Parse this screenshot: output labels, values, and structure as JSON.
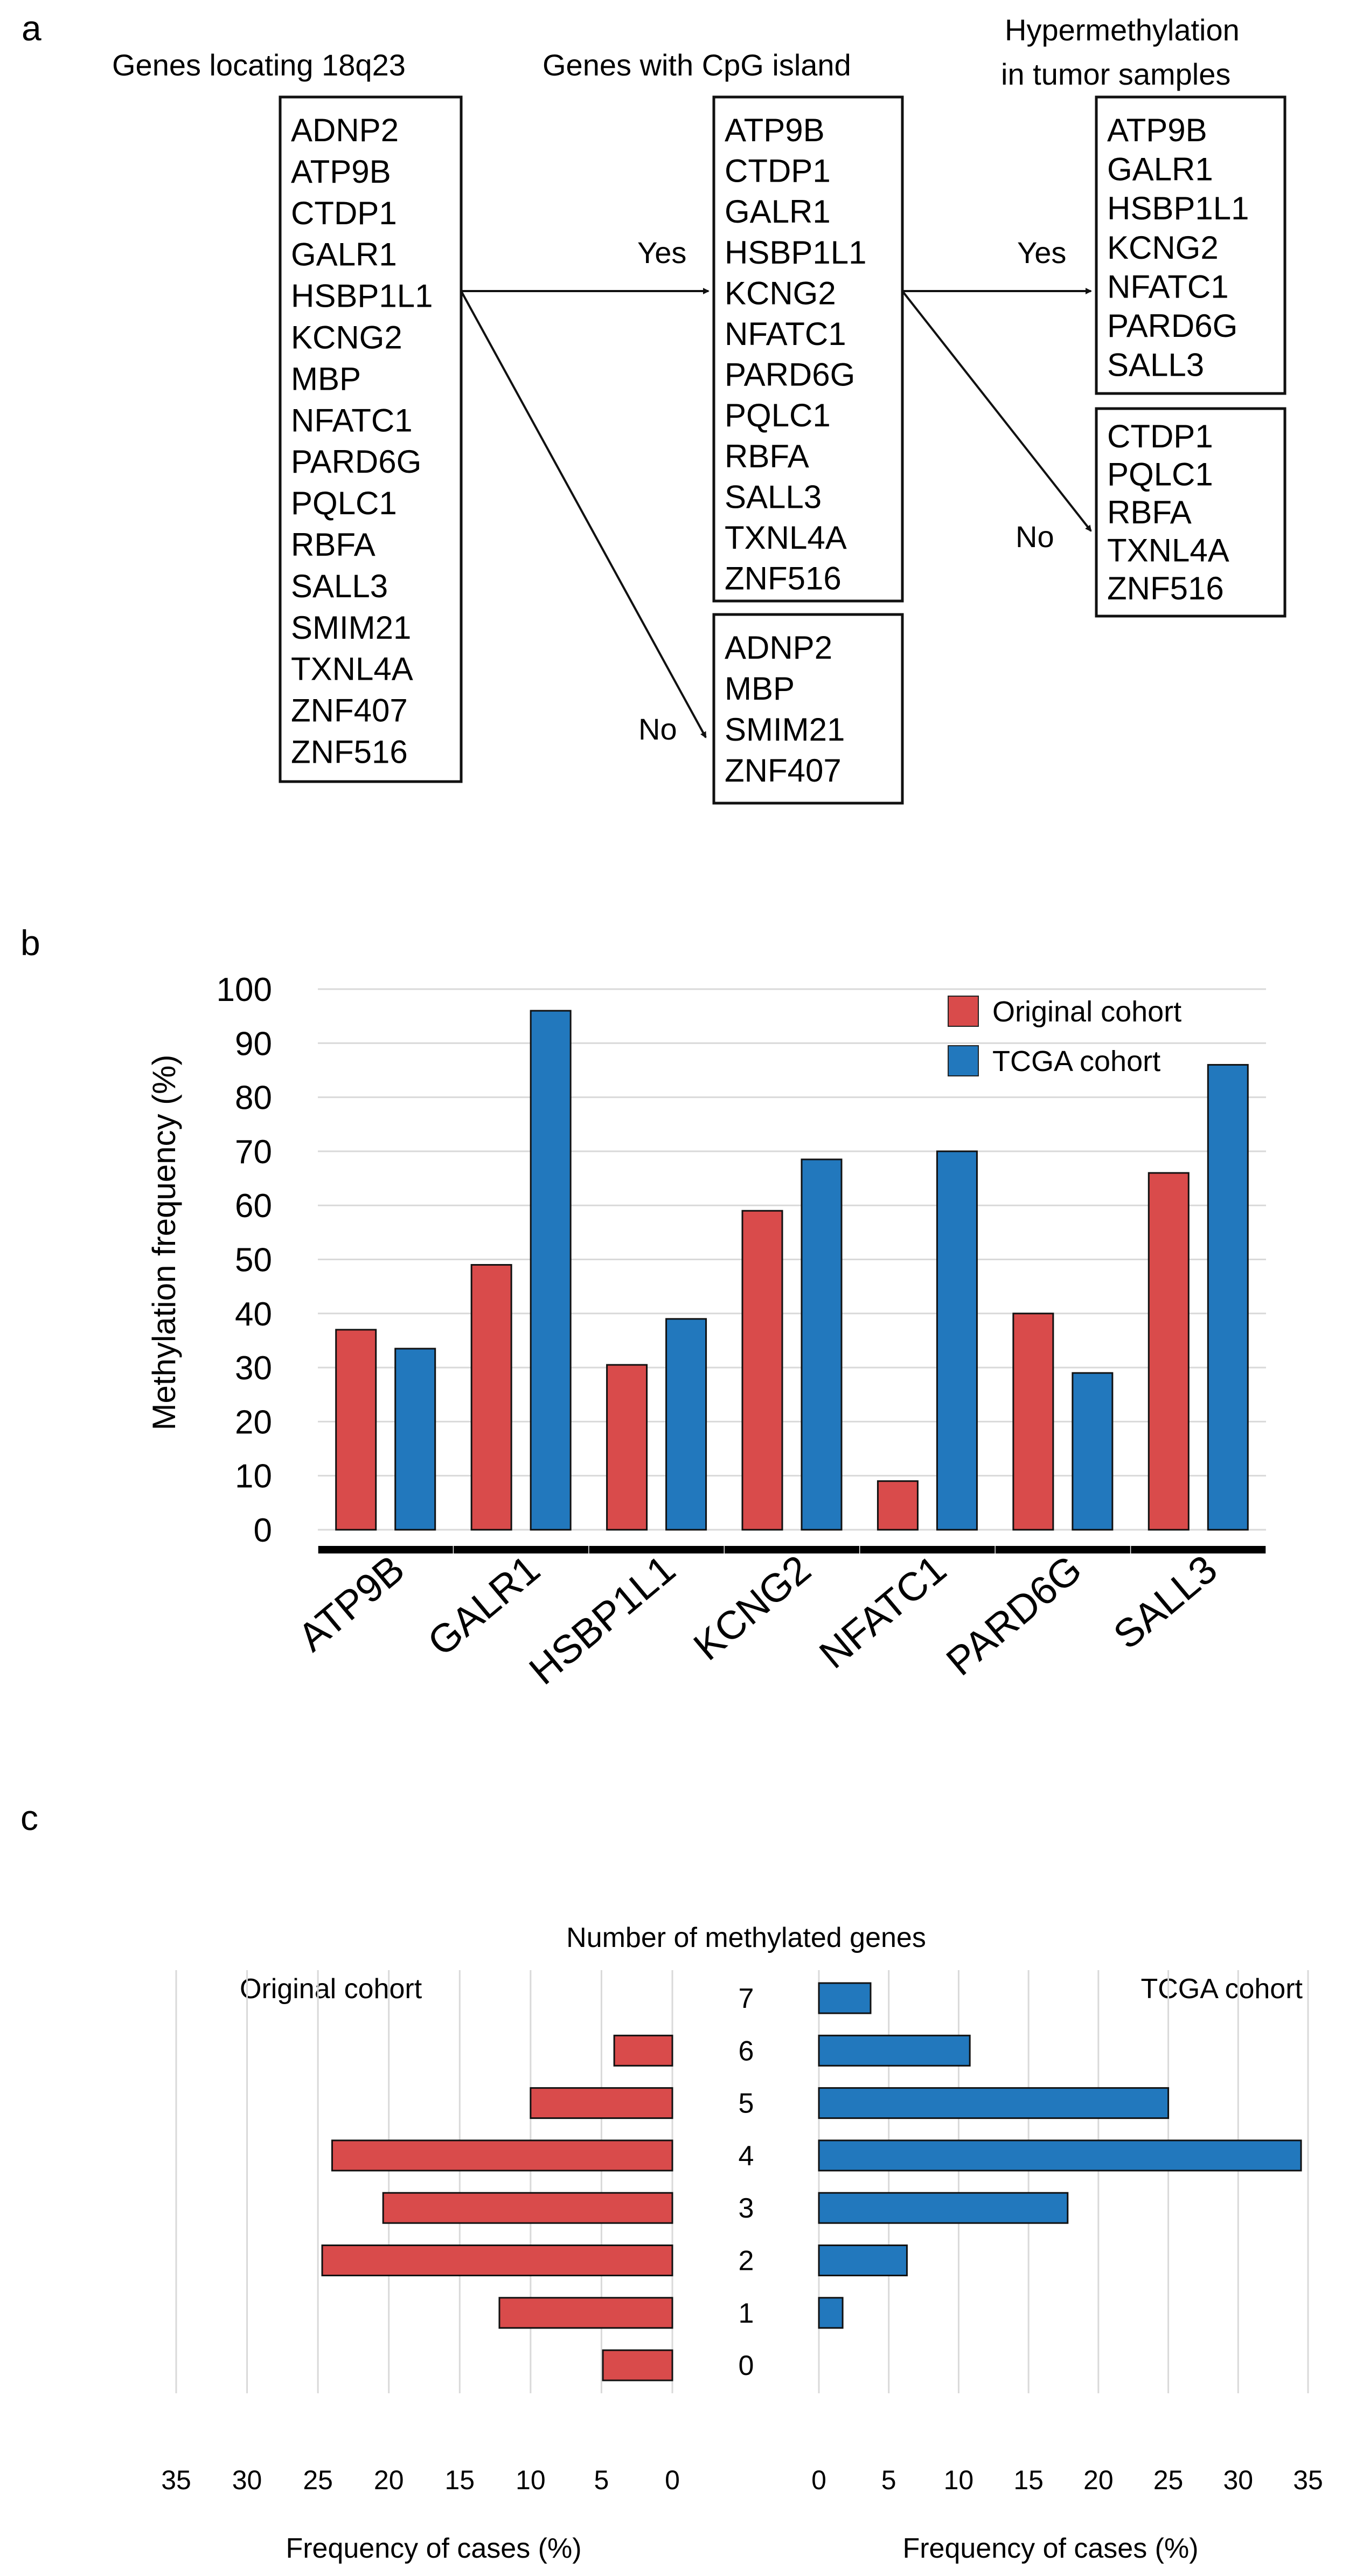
{
  "panel_a": {
    "letter": "a",
    "headers": [
      "Genes locating 18q23",
      "Genes with CpG island",
      "Hypermethylation",
      "in tumor samples"
    ],
    "boxes": {
      "all_genes": [
        "ADNP2",
        "ATP9B",
        "CTDP1",
        "GALR1",
        "HSBP1L1",
        "KCNG2",
        "MBP",
        "NFATC1",
        "PARD6G",
        "PQLC1",
        "RBFA",
        "SALL3",
        "SMIM21",
        "TXNL4A",
        "ZNF407",
        "ZNF516"
      ],
      "cpg_yes": [
        "ATP9B",
        "CTDP1",
        "GALR1",
        "HSBP1L1",
        "KCNG2",
        "NFATC1",
        "PARD6G",
        "PQLC1",
        "RBFA",
        "SALL3",
        "TXNL4A",
        "ZNF516"
      ],
      "cpg_no": [
        "ADNP2",
        "MBP",
        "SMIM21",
        "ZNF407"
      ],
      "hyper_yes": [
        "ATP9B",
        "GALR1",
        "HSBP1L1",
        "KCNG2",
        "NFATC1",
        "PARD6G",
        "SALL3"
      ],
      "hyper_no": [
        "CTDP1",
        "PQLC1",
        "RBFA",
        "TXNL4A",
        "ZNF516"
      ]
    },
    "labels": {
      "yes1": "Yes",
      "no1": "No",
      "yes2": "Yes",
      "no2": "No"
    }
  },
  "chart_data": [
    {
      "panel": "b",
      "type": "bar",
      "categories": [
        "ATP9B",
        "GALR1",
        "HSBP1L1",
        "KCNG2",
        "NFATC1",
        "PARD6G",
        "SALL3"
      ],
      "series": [
        {
          "name": "Original cohort",
          "color": "#d94b4b",
          "values": [
            37,
            49,
            30.5,
            59,
            9,
            40,
            66
          ]
        },
        {
          "name": "TCGA cohort",
          "color": "#2278bd",
          "values": [
            33.5,
            96,
            39,
            68.5,
            70,
            29,
            86
          ]
        }
      ],
      "ylabel": "Methylation frequency (%)",
      "ylim": [
        0,
        100
      ],
      "yticks": [
        0,
        10,
        20,
        30,
        40,
        50,
        60,
        70,
        80,
        90,
        100
      ],
      "grid": true,
      "legend": "top-right"
    },
    {
      "panel": "c",
      "type": "bar",
      "orientation": "horizontal-butterfly",
      "title": "Number of  methylated genes",
      "categories": [
        "7",
        "6",
        "5",
        "4",
        "3",
        "2",
        "1",
        "0"
      ],
      "series": [
        {
          "name": "Original cohort",
          "color": "#d94b4b",
          "values": [
            0,
            4.1,
            10,
            24,
            20.4,
            24.7,
            12.2,
            4.9
          ]
        },
        {
          "name": "TCGA cohort",
          "color": "#2278bd",
          "values": [
            3.7,
            10.8,
            25,
            34.5,
            17.8,
            6.3,
            1.7,
            0
          ]
        }
      ],
      "xlabel_left": "Frequency of cases (%)",
      "xlabel_right": "Frequency of cases (%)",
      "xlim": [
        0,
        35
      ],
      "xticks": [
        0,
        5,
        10,
        15,
        20,
        25,
        30,
        35
      ],
      "grid": true
    }
  ],
  "panel_b_letter": "b",
  "panel_c_letter": "c"
}
